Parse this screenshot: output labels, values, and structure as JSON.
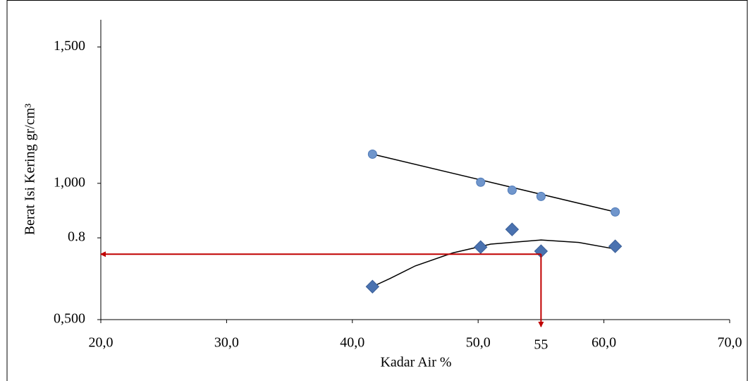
{
  "chart_data": {
    "type": "scatter",
    "xlabel": "Kadar Air  %",
    "ylabel": "Berat Isi Kering  gr/cm³",
    "xlim": [
      20,
      70
    ],
    "ylim": [
      0.5,
      1.6
    ],
    "xticks": [
      {
        "value": 20,
        "label": "20,0"
      },
      {
        "value": 30,
        "label": "30,0"
      },
      {
        "value": 40,
        "label": "40,0"
      },
      {
        "value": 50,
        "label": "50,0"
      },
      {
        "value": 60,
        "label": "60,0"
      },
      {
        "value": 70,
        "label": "70,0"
      }
    ],
    "yticks": [
      {
        "value": 0.5,
        "label": "0,500"
      },
      0.8,
      {
        "value": 1.0,
        "label": "1,000"
      },
      {
        "value": 1.5,
        "label": "1,500"
      }
    ],
    "grid": false,
    "series": [
      {
        "marker": "circle",
        "color": "#7096cc",
        "x": [
          41.6,
          50.2,
          52.7,
          55.0,
          60.9
        ],
        "values": [
          1.107,
          1.004,
          0.975,
          0.952,
          0.895
        ]
      },
      {
        "marker": "diamond",
        "color": "#4a72b0",
        "x": [
          41.6,
          50.2,
          52.7,
          55.0,
          60.9
        ],
        "values": [
          0.621,
          0.766,
          0.831,
          0.751,
          0.769
        ]
      }
    ],
    "trendlines": [
      {
        "color": "#000000",
        "x": [
          41.6,
          60.9
        ],
        "values": [
          1.107,
          0.895
        ]
      },
      {
        "color": "#000000",
        "x": [
          41.6,
          43,
          45,
          48,
          51,
          55,
          58,
          60.9
        ],
        "values": [
          0.621,
          0.651,
          0.697,
          0.745,
          0.777,
          0.792,
          0.783,
          0.759
        ]
      }
    ],
    "reference": {
      "x": 55,
      "y": 0.74,
      "color": "#c00000"
    }
  }
}
